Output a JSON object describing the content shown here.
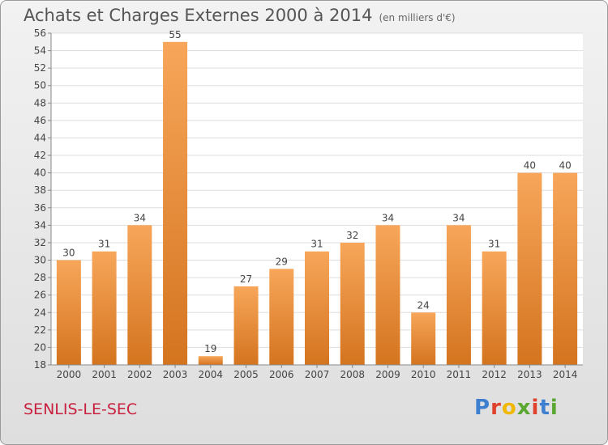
{
  "header": {
    "title": "Achats et Charges Externes 2000 à 2014",
    "subtitle": "(en milliers d'€)"
  },
  "footer": {
    "town": "SENLIS-LE-SEC",
    "logo": "Proxiti"
  },
  "colors": {
    "bar_light": "#f7a65a",
    "bar_dark": "#d4741f",
    "town": "#c8203f",
    "logo_letters": [
      "#3f7fd0",
      "#e0412d",
      "#f0b800",
      "#5aa731",
      "#e0412d",
      "#3f7fd0",
      "#5aa731"
    ]
  },
  "chart_data": {
    "type": "bar",
    "categories": [
      "2000",
      "2001",
      "2002",
      "2003",
      "2004",
      "2005",
      "2006",
      "2007",
      "2008",
      "2009",
      "2010",
      "2011",
      "2012",
      "2013",
      "2014"
    ],
    "values": [
      30,
      31,
      34,
      55,
      19,
      27,
      29,
      31,
      32,
      34,
      24,
      34,
      31,
      40,
      40
    ],
    "ylim": [
      18,
      56
    ],
    "yticks": [
      18,
      20,
      22,
      24,
      26,
      28,
      30,
      32,
      34,
      36,
      38,
      40,
      42,
      44,
      46,
      48,
      50,
      52,
      54,
      56
    ],
    "grid": true
  }
}
